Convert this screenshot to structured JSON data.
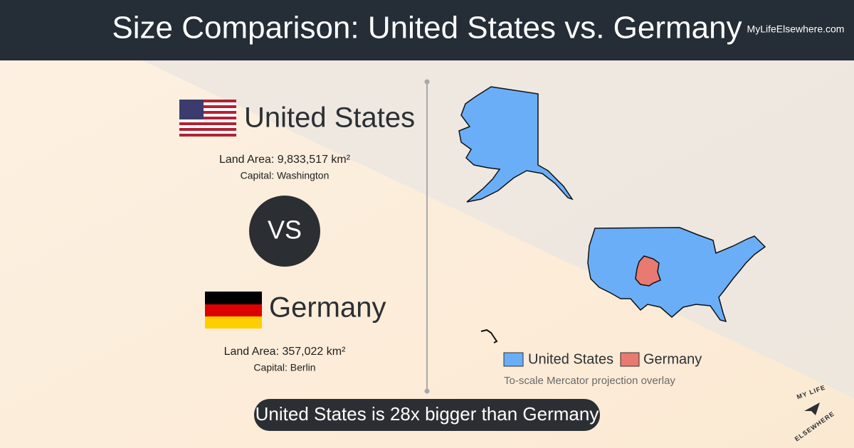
{
  "header": {
    "title": "Size Comparison: United States vs. Germany",
    "site": "MyLifeElsewhere.com"
  },
  "countries": [
    {
      "name": "United States",
      "land_area": "Land Area: 9,833,517 km²",
      "capital": "Capital: Washington",
      "color": "#6aaef8"
    },
    {
      "name": "Germany",
      "land_area": "Land Area: 357,022 km²",
      "capital": "Capital: Berlin",
      "color": "#e87a72"
    }
  ],
  "vs": "VS",
  "caption": "To-scale Mercator projection overlay",
  "summary": "United States is 28x bigger than Germany",
  "logo": {
    "top": "MY LIFE",
    "bottom": "ELSEWHERE"
  }
}
